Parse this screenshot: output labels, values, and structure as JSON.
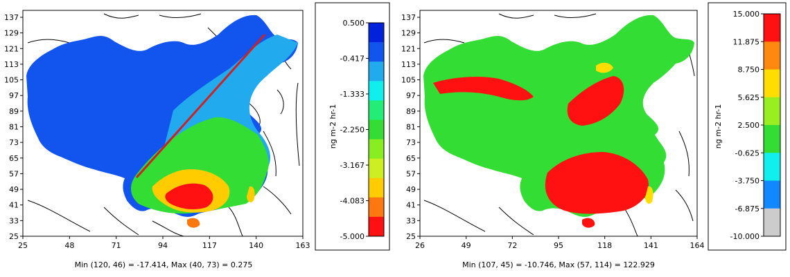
{
  "chart_data": [
    {
      "type": "heatmap",
      "title": "",
      "x_ticks": [
        "25",
        "48",
        "71",
        "94",
        "117",
        "140",
        "163"
      ],
      "y_ticks": [
        "137",
        "129",
        "121",
        "113",
        "105",
        "97",
        "89",
        "81",
        "73",
        "65",
        "57",
        "49",
        "41",
        "33",
        "25"
      ],
      "xlim": [
        25,
        163
      ],
      "ylim": [
        25,
        137
      ],
      "stats": "Min (120, 46) = -17.414, Max (40, 73) = 0.275",
      "colorbar": {
        "unit": "ng m-2 hr-1",
        "labels": [
          "0.500",
          "-0.417",
          "-1.333",
          "-2.250",
          "-3.167",
          "-4.083",
          "-5.000"
        ],
        "colors": [
          "#0022dd",
          "#1155ee",
          "#22aaee",
          "#11eeee",
          "#22ee77",
          "#33dd33",
          "#88ee22",
          "#ccee22",
          "#ffcc00",
          "#ff7711",
          "#ff1111"
        ]
      },
      "transect_line": {
        "from": [
          83,
          53
        ],
        "to": [
          150,
          127
        ],
        "color": "#cc2222"
      }
    },
    {
      "type": "heatmap",
      "title": "",
      "x_ticks": [
        "26",
        "49",
        "72",
        "95",
        "118",
        "141",
        "164"
      ],
      "y_ticks": [
        "137",
        "129",
        "121",
        "113",
        "105",
        "97",
        "89",
        "81",
        "73",
        "65",
        "57",
        "49",
        "41",
        "33",
        "25"
      ],
      "xlim": [
        26,
        164
      ],
      "ylim": [
        25,
        137
      ],
      "stats": "Min (107, 45) = -10.746, Max (57, 114) = 122.929",
      "colorbar": {
        "unit": "ng m-2 hr-1",
        "labels": [
          "15.000",
          "11.875",
          "8.750",
          "5.625",
          "2.500",
          "-0.625",
          "-3.750",
          "-6.875",
          "-10.000"
        ],
        "colors": [
          "#ff1111",
          "#ff8811",
          "#ffdd00",
          "#99ee22",
          "#33dd33",
          "#11eeee",
          "#1188ff",
          "#cccccc"
        ]
      }
    }
  ]
}
